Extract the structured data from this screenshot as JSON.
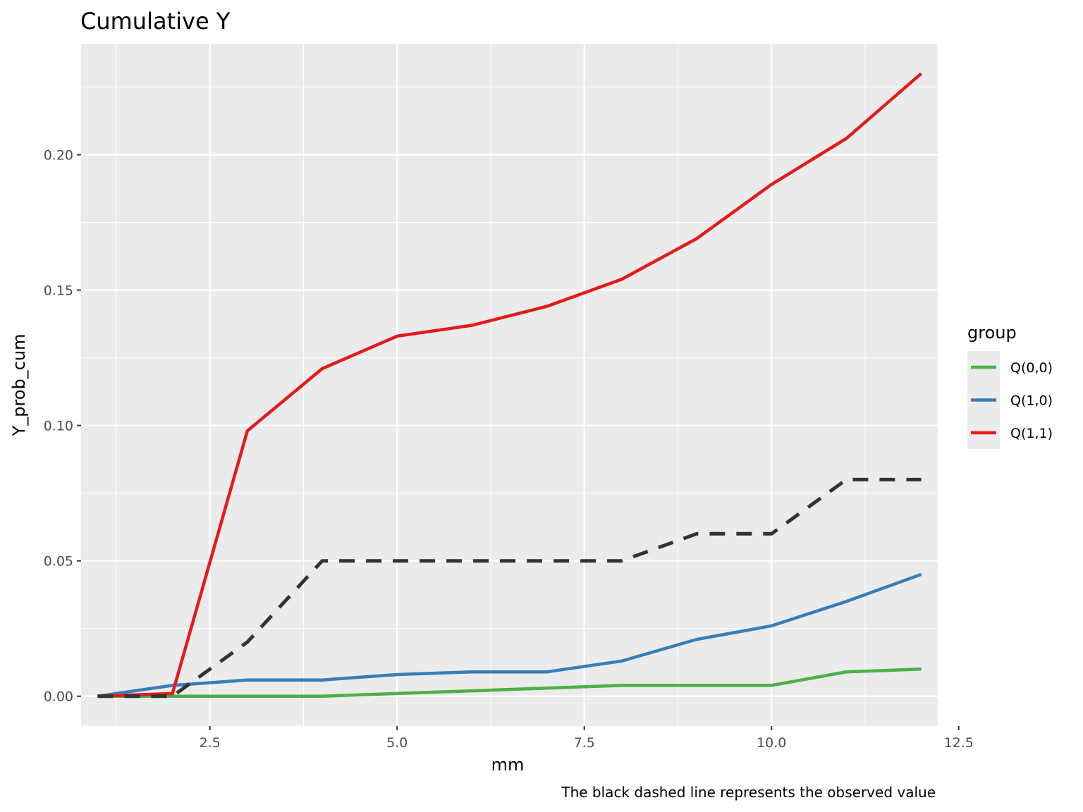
{
  "chart_data": {
    "type": "line",
    "title": "Cumulative Y",
    "xlabel": "mm",
    "ylabel": "Y_prob_cum",
    "caption": "The black dashed line represents the observed value",
    "xlim": [
      0.78,
      12.22
    ],
    "ylim": [
      -0.011,
      0.241
    ],
    "x_ticks": [
      2.5,
      5.0,
      7.5,
      10.0,
      12.5
    ],
    "x_tick_labels": [
      "2.5",
      "5.0",
      "7.5",
      "10.0",
      "12.5"
    ],
    "y_ticks": [
      0.0,
      0.05,
      0.1,
      0.15,
      0.2
    ],
    "y_tick_labels": [
      "0.00",
      "0.05",
      "0.10",
      "0.15",
      "0.20"
    ],
    "x": [
      1,
      2,
      3,
      4,
      5,
      6,
      7,
      8,
      9,
      10,
      11,
      12
    ],
    "series": [
      {
        "name": "Q(0,0)",
        "color": "#4daf4a",
        "values": [
          0.0,
          0.0,
          0.0,
          0.0,
          0.001,
          0.002,
          0.003,
          0.004,
          0.004,
          0.004,
          0.009,
          0.01
        ]
      },
      {
        "name": "Q(1,0)",
        "color": "#377eb8",
        "values": [
          0.0,
          0.004,
          0.006,
          0.006,
          0.008,
          0.009,
          0.009,
          0.013,
          0.021,
          0.026,
          0.035,
          0.045
        ]
      },
      {
        "name": "Q(1,1)",
        "color": "#e41a1c",
        "values": [
          0.0,
          0.001,
          0.098,
          0.121,
          0.133,
          0.137,
          0.144,
          0.154,
          0.169,
          0.189,
          0.206,
          0.23
        ]
      }
    ],
    "observed": {
      "color": "#333333",
      "line_style": "dashed",
      "values": [
        0.0,
        0.0,
        0.02,
        0.05,
        0.05,
        0.05,
        0.05,
        0.05,
        0.06,
        0.06,
        0.08,
        0.08
      ]
    },
    "legend": {
      "title": "group",
      "position": "right",
      "entries": [
        "Q(0,0)",
        "Q(1,0)",
        "Q(1,1)"
      ]
    },
    "grid": true,
    "panel_color": "#ebebeb"
  }
}
